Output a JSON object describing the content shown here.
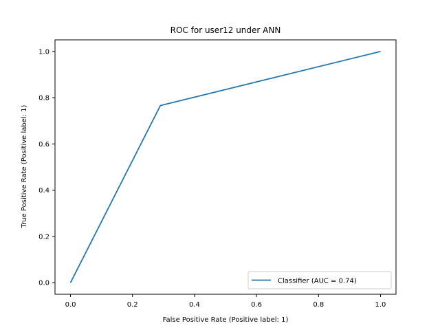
{
  "chart_data": {
    "type": "line",
    "title": "ROC for user12 under ANN",
    "xlabel": "False Positive Rate (Positive label: 1)",
    "ylabel": "True Positive Rate (Positive label: 1)",
    "xlim": [
      -0.05,
      1.05
    ],
    "ylim": [
      -0.05,
      1.05
    ],
    "xticks": [
      0.0,
      0.2,
      0.4,
      0.6,
      0.8,
      1.0
    ],
    "yticks": [
      0.0,
      0.2,
      0.4,
      0.6,
      0.8,
      1.0
    ],
    "xtick_labels": [
      "0.0",
      "0.2",
      "0.4",
      "0.6",
      "0.8",
      "1.0"
    ],
    "ytick_labels": [
      "0.0",
      "0.2",
      "0.4",
      "0.6",
      "0.8",
      "1.0"
    ],
    "grid": false,
    "legend_position": "lower-right",
    "series": [
      {
        "name": "Classifier (AUC = 0.74)",
        "color": "#1f77b4",
        "x": [
          0.0,
          0.29,
          1.0
        ],
        "y": [
          0.0,
          0.766,
          1.0
        ]
      }
    ]
  }
}
